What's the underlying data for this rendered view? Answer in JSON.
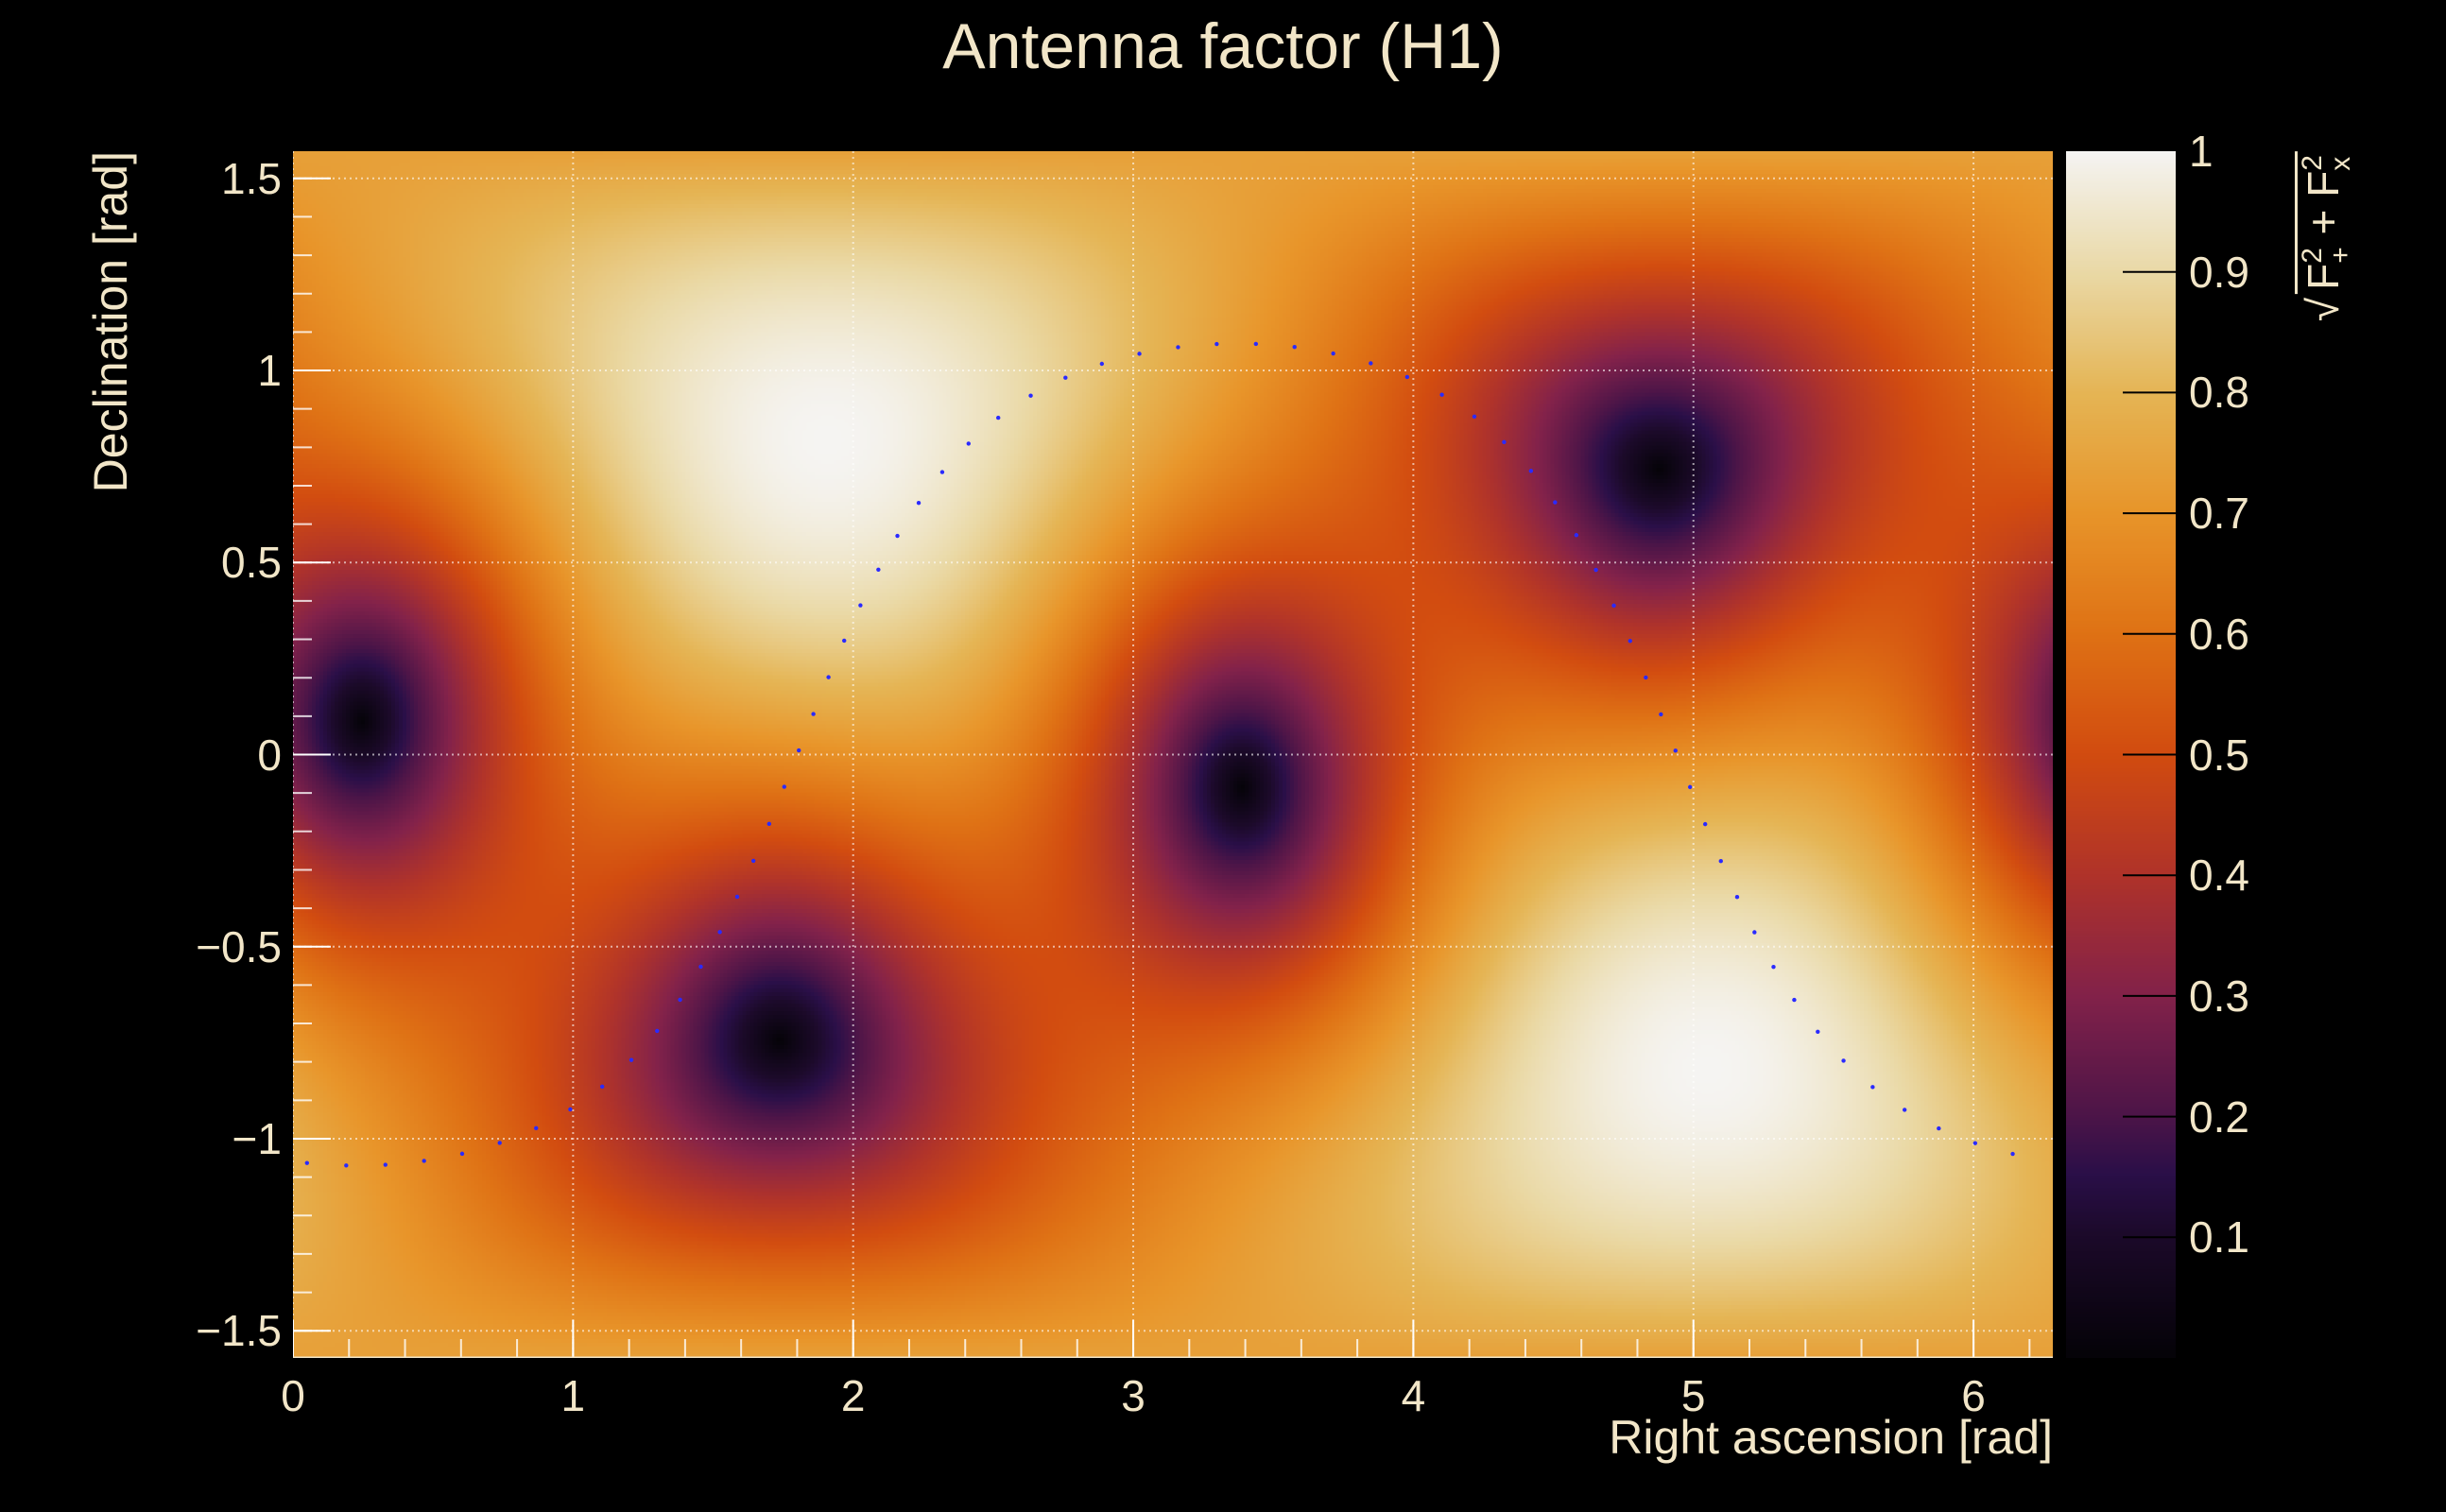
{
  "chart_data": {
    "type": "heatmap",
    "title": "Antenna factor (H1)",
    "xlabel": "Right ascension [rad]",
    "ylabel": "Declination [rad]",
    "xlim": [
      0,
      6.2832
    ],
    "ylim": [
      -1.5708,
      1.5708
    ],
    "xticks": [
      "0",
      "1",
      "2",
      "3",
      "4",
      "5",
      "6"
    ],
    "yticks": [
      {
        "v": 1.5,
        "label": "1.5"
      },
      {
        "v": 1,
        "label": "1"
      },
      {
        "v": 0.5,
        "label": "0.5"
      },
      {
        "v": 0,
        "label": "0"
      },
      {
        "v": -0.5,
        "label": "−0.5"
      },
      {
        "v": -1,
        "label": "−1"
      },
      {
        "v": -1.5,
        "label": "−1.5"
      }
    ],
    "grid": true,
    "colorbar": {
      "range": [
        0,
        1
      ],
      "ticks": [
        {
          "v": 1,
          "label": "1"
        },
        {
          "v": 0.9,
          "label": "0.9"
        },
        {
          "v": 0.8,
          "label": "0.8"
        },
        {
          "v": 0.7,
          "label": "0.7"
        },
        {
          "v": 0.6,
          "label": "0.6"
        },
        {
          "v": 0.5,
          "label": "0.5"
        },
        {
          "v": 0.4,
          "label": "0.4"
        },
        {
          "v": 0.3,
          "label": "0.3"
        },
        {
          "v": 0.2,
          "label": "0.2"
        },
        {
          "v": 0.1,
          "label": "0.1"
        }
      ],
      "label": {
        "base": "F",
        "sup": "2",
        "sub_plus": "+",
        "plus": " + ",
        "sub_x": "x"
      },
      "colormap": [
        [
          0.0,
          "#050308"
        ],
        [
          0.1,
          "#1c0a2a"
        ],
        [
          0.15,
          "#2a0f48"
        ],
        [
          0.2,
          "#4d1548"
        ],
        [
          0.3,
          "#83224a"
        ],
        [
          0.4,
          "#b0332a"
        ],
        [
          0.5,
          "#d24c10"
        ],
        [
          0.6,
          "#df7215"
        ],
        [
          0.7,
          "#e8952a"
        ],
        [
          0.8,
          "#e5b555"
        ],
        [
          0.9,
          "#ead9a6"
        ],
        [
          1.0,
          "#f5f4f2"
        ]
      ]
    },
    "value": "sqrt(F+^2 + Fx^2)",
    "maxima": [
      {
        "ra": 1.91,
        "dec": 0.82,
        "value": 1.0
      },
      {
        "ra": 5.05,
        "dec": -0.82,
        "value": 1.0
      }
    ],
    "minima": [
      {
        "ra": 0.25,
        "dec": 0.1
      },
      {
        "ra": 3.4,
        "dec": -0.1
      },
      {
        "ra": 4.85,
        "dec": 0.75
      },
      {
        "ra": 1.7,
        "dec": -0.75
      }
    ],
    "track": {
      "color": "#2a2aff",
      "inclination": 1.07,
      "node_ra": 1.8,
      "ra_range": [
        0.05,
        6.22
      ]
    }
  }
}
